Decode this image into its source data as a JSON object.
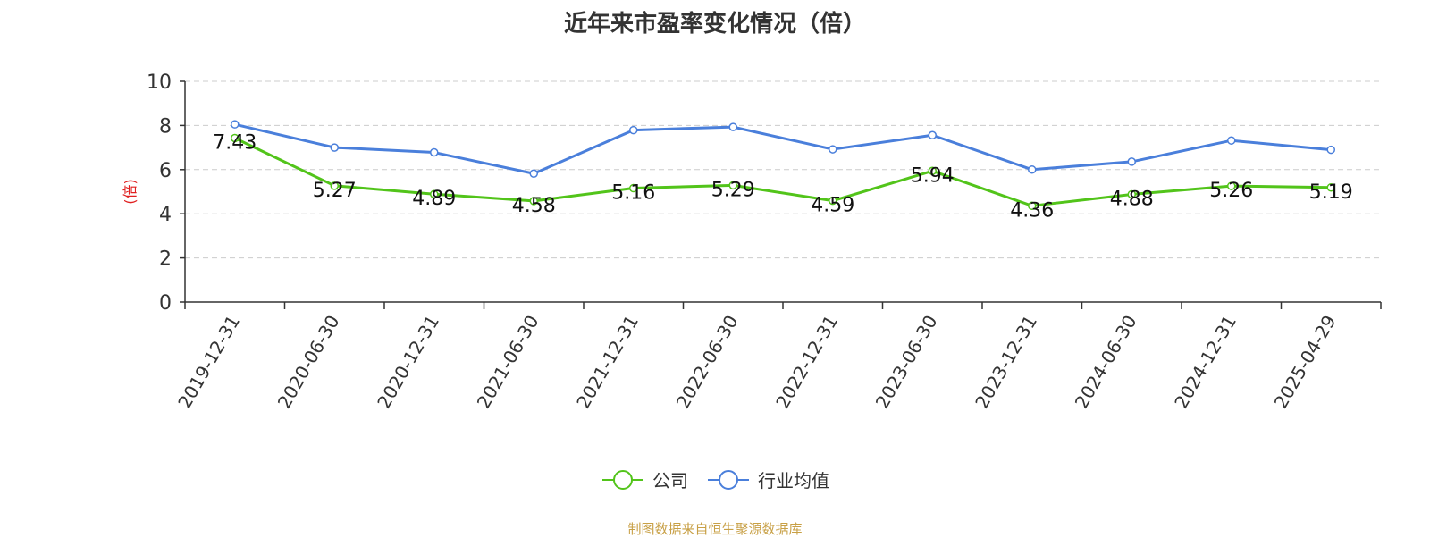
{
  "chart_data": {
    "type": "line",
    "title": "近年来市盈率变化情况（倍）",
    "ylabel": "(倍)",
    "xlabel": "",
    "ylim": [
      0,
      10
    ],
    "yticks": [
      0,
      2,
      4,
      6,
      8,
      10
    ],
    "grid": true,
    "legend_position": "bottom-center",
    "categories": [
      "2019-12-31",
      "2020-06-30",
      "2020-12-31",
      "2021-06-30",
      "2021-12-31",
      "2022-06-30",
      "2022-12-31",
      "2023-06-30",
      "2023-12-31",
      "2024-06-30",
      "2024-12-31",
      "2025-04-29"
    ],
    "series": [
      {
        "name": "公司",
        "color": "#52c41a",
        "show_labels": true,
        "values": [
          7.43,
          5.27,
          4.89,
          4.58,
          5.16,
          5.29,
          4.59,
          5.94,
          4.36,
          4.88,
          5.26,
          5.19
        ]
      },
      {
        "name": "行业均值",
        "color": "#4a7fdb",
        "show_labels": false,
        "values": [
          8.05,
          7.0,
          6.78,
          5.82,
          7.79,
          7.93,
          6.92,
          7.56,
          6.0,
          6.36,
          7.32,
          6.9
        ]
      }
    ]
  },
  "source_note": "制图数据来自恒生聚源数据库",
  "colors": {
    "axis": "#333333",
    "grid": "#cccccc",
    "ylabel": "#e02020",
    "source": "#c8a046"
  }
}
